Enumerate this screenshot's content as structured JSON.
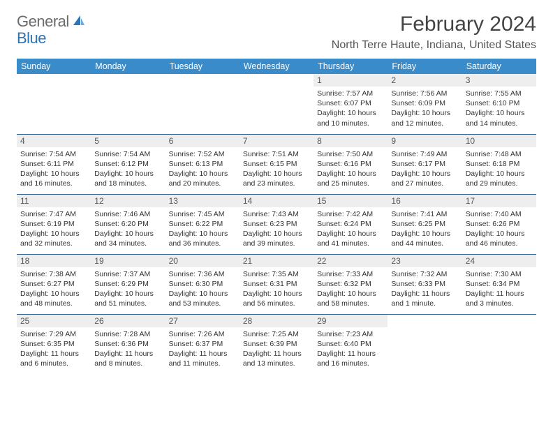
{
  "logo": {
    "general": "General",
    "blue": "Blue"
  },
  "title": "February 2024",
  "location": "North Terre Haute, Indiana, United States",
  "colors": {
    "header_bg": "#3a8bc9",
    "header_fg": "#ffffff",
    "daynum_bg": "#eeeeee",
    "row_divider": "#2b5b8a",
    "logo_general": "#6a6a6a",
    "logo_blue": "#2b75b5"
  },
  "day_headers": [
    "Sunday",
    "Monday",
    "Tuesday",
    "Wednesday",
    "Thursday",
    "Friday",
    "Saturday"
  ],
  "weeks": [
    [
      null,
      null,
      null,
      null,
      {
        "n": "1",
        "sr": "7:57 AM",
        "ss": "6:07 PM",
        "dl": "10 hours and 10 minutes."
      },
      {
        "n": "2",
        "sr": "7:56 AM",
        "ss": "6:09 PM",
        "dl": "10 hours and 12 minutes."
      },
      {
        "n": "3",
        "sr": "7:55 AM",
        "ss": "6:10 PM",
        "dl": "10 hours and 14 minutes."
      }
    ],
    [
      {
        "n": "4",
        "sr": "7:54 AM",
        "ss": "6:11 PM",
        "dl": "10 hours and 16 minutes."
      },
      {
        "n": "5",
        "sr": "7:54 AM",
        "ss": "6:12 PM",
        "dl": "10 hours and 18 minutes."
      },
      {
        "n": "6",
        "sr": "7:52 AM",
        "ss": "6:13 PM",
        "dl": "10 hours and 20 minutes."
      },
      {
        "n": "7",
        "sr": "7:51 AM",
        "ss": "6:15 PM",
        "dl": "10 hours and 23 minutes."
      },
      {
        "n": "8",
        "sr": "7:50 AM",
        "ss": "6:16 PM",
        "dl": "10 hours and 25 minutes."
      },
      {
        "n": "9",
        "sr": "7:49 AM",
        "ss": "6:17 PM",
        "dl": "10 hours and 27 minutes."
      },
      {
        "n": "10",
        "sr": "7:48 AM",
        "ss": "6:18 PM",
        "dl": "10 hours and 29 minutes."
      }
    ],
    [
      {
        "n": "11",
        "sr": "7:47 AM",
        "ss": "6:19 PM",
        "dl": "10 hours and 32 minutes."
      },
      {
        "n": "12",
        "sr": "7:46 AM",
        "ss": "6:20 PM",
        "dl": "10 hours and 34 minutes."
      },
      {
        "n": "13",
        "sr": "7:45 AM",
        "ss": "6:22 PM",
        "dl": "10 hours and 36 minutes."
      },
      {
        "n": "14",
        "sr": "7:43 AM",
        "ss": "6:23 PM",
        "dl": "10 hours and 39 minutes."
      },
      {
        "n": "15",
        "sr": "7:42 AM",
        "ss": "6:24 PM",
        "dl": "10 hours and 41 minutes."
      },
      {
        "n": "16",
        "sr": "7:41 AM",
        "ss": "6:25 PM",
        "dl": "10 hours and 44 minutes."
      },
      {
        "n": "17",
        "sr": "7:40 AM",
        "ss": "6:26 PM",
        "dl": "10 hours and 46 minutes."
      }
    ],
    [
      {
        "n": "18",
        "sr": "7:38 AM",
        "ss": "6:27 PM",
        "dl": "10 hours and 48 minutes."
      },
      {
        "n": "19",
        "sr": "7:37 AM",
        "ss": "6:29 PM",
        "dl": "10 hours and 51 minutes."
      },
      {
        "n": "20",
        "sr": "7:36 AM",
        "ss": "6:30 PM",
        "dl": "10 hours and 53 minutes."
      },
      {
        "n": "21",
        "sr": "7:35 AM",
        "ss": "6:31 PM",
        "dl": "10 hours and 56 minutes."
      },
      {
        "n": "22",
        "sr": "7:33 AM",
        "ss": "6:32 PM",
        "dl": "10 hours and 58 minutes."
      },
      {
        "n": "23",
        "sr": "7:32 AM",
        "ss": "6:33 PM",
        "dl": "11 hours and 1 minute."
      },
      {
        "n": "24",
        "sr": "7:30 AM",
        "ss": "6:34 PM",
        "dl": "11 hours and 3 minutes."
      }
    ],
    [
      {
        "n": "25",
        "sr": "7:29 AM",
        "ss": "6:35 PM",
        "dl": "11 hours and 6 minutes."
      },
      {
        "n": "26",
        "sr": "7:28 AM",
        "ss": "6:36 PM",
        "dl": "11 hours and 8 minutes."
      },
      {
        "n": "27",
        "sr": "7:26 AM",
        "ss": "6:37 PM",
        "dl": "11 hours and 11 minutes."
      },
      {
        "n": "28",
        "sr": "7:25 AM",
        "ss": "6:39 PM",
        "dl": "11 hours and 13 minutes."
      },
      {
        "n": "29",
        "sr": "7:23 AM",
        "ss": "6:40 PM",
        "dl": "11 hours and 16 minutes."
      },
      null,
      null
    ]
  ],
  "labels": {
    "sunrise": "Sunrise:",
    "sunset": "Sunset:",
    "daylight": "Daylight:"
  }
}
